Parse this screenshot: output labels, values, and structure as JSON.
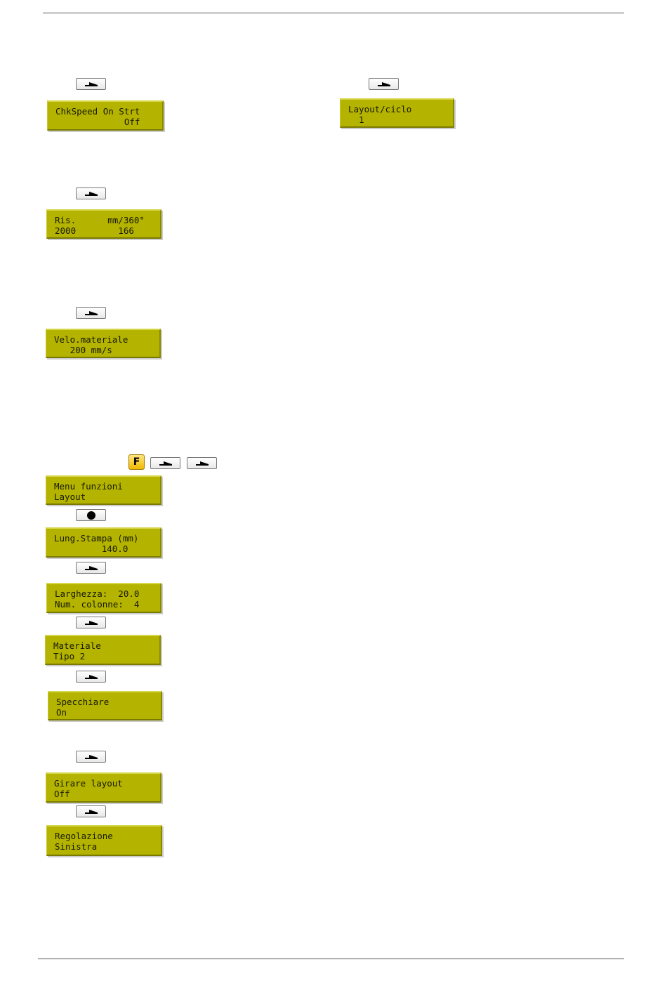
{
  "colors": {
    "lcd": "#b3b300",
    "f_key": "#f0b800"
  },
  "keys": {
    "f_label": "F",
    "arrow_icon": "right-arrow-key",
    "enter_icon": "dot-key"
  },
  "displays": [
    {
      "line1": "ChkSpeed On Strt",
      "line2": "             Off"
    },
    {
      "line1": "Layout/ciclo",
      "line2": "  1"
    },
    {
      "line1": "Ris.      mm/360°",
      "line2": "2000        166"
    },
    {
      "line1": "Velo.materiale",
      "line2": "   200 mm/s"
    },
    {
      "line1": "Menu funzioni",
      "line2": "Layout"
    },
    {
      "line1": "Lung.Stampa (mm)",
      "line2": "         140.0"
    },
    {
      "line1": "Larghezza:  20.0",
      "line2": "Num. colonne:  4"
    },
    {
      "line1": "Materiale",
      "line2": "Tipo 2"
    },
    {
      "line1": "Specchiare",
      "line2": "On"
    },
    {
      "line1": "Girare layout",
      "line2": "Off"
    },
    {
      "line1": "Regolazione",
      "line2": "Sinistra"
    }
  ]
}
